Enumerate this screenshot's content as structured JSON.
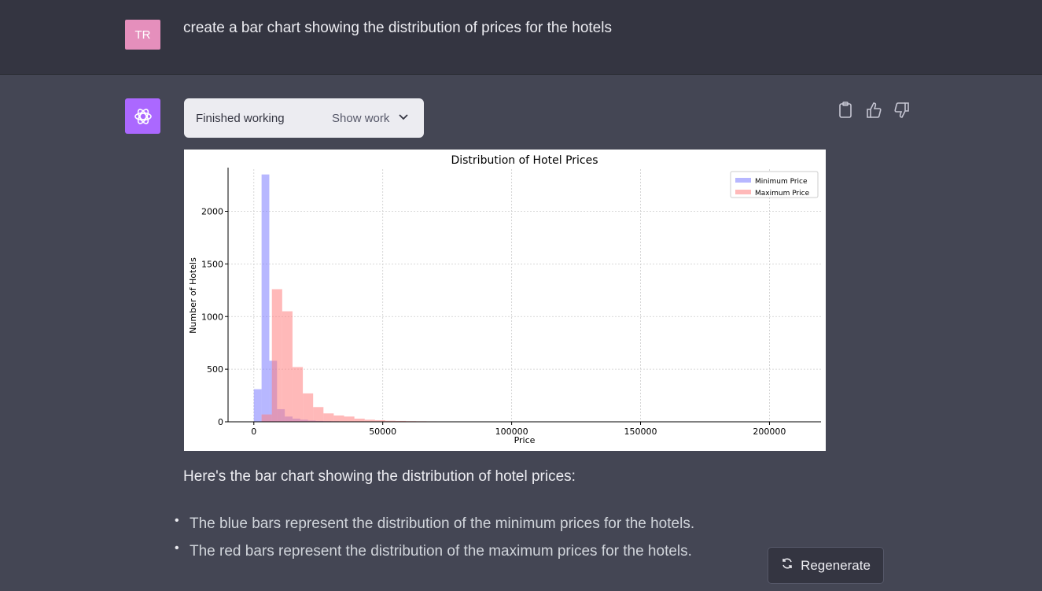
{
  "user_message": {
    "avatar_initials": "TR",
    "text": "create a bar chart showing the distribution of prices for the hotels"
  },
  "assistant": {
    "status": "Finished working",
    "show_work": "Show work",
    "intro": "Here's the bar chart showing the distribution of hotel prices:",
    "bullets": [
      "The blue bars represent the distribution of the minimum prices for the hotels.",
      "The red bars represent the distribution of the maximum prices for the hotels."
    ]
  },
  "regenerate_label": "Regenerate",
  "icons": {
    "copy": "clipboard-icon",
    "like": "thumbs-up-icon",
    "dislike": "thumbs-down-icon",
    "regenerate": "refresh-icon",
    "assistant": "openai-logo-icon",
    "chevron": "chevron-down-icon"
  },
  "colors": {
    "user_avatar": "#e58fbc",
    "assistant_avatar": "#ab68ff",
    "min_series": "#7b7bff",
    "max_series": "#ff7f7f"
  },
  "chart_data": {
    "type": "bar",
    "title": "Distribution of Hotel Prices",
    "xlabel": "Price",
    "ylabel": "Number of Hotels",
    "xlim": [
      -10000,
      220000
    ],
    "ylim": [
      0,
      2400
    ],
    "xticks": [
      0,
      50000,
      100000,
      150000,
      200000
    ],
    "yticks": [
      0,
      500,
      1000,
      1500,
      2000
    ],
    "grid": true,
    "legend_position": "top-right",
    "series": [
      {
        "name": "Minimum Price",
        "color": "#7b7bff",
        "bin_starts": [
          0,
          3000,
          6000,
          9000,
          12000,
          15000,
          18000,
          21000,
          24000,
          27000,
          30000,
          33000,
          36000,
          39000,
          42000
        ],
        "values": [
          310,
          2350,
          580,
          120,
          50,
          30,
          20,
          12,
          8,
          6,
          5,
          4,
          3,
          2,
          2
        ]
      },
      {
        "name": "Maximum Price",
        "color": "#ff7f7f",
        "bin_starts": [
          3000,
          7000,
          11000,
          15000,
          19000,
          23000,
          27000,
          31000,
          35000,
          39000,
          43000,
          47000,
          51000,
          55000,
          59000,
          63000,
          67000,
          71000
        ],
        "values": [
          70,
          1260,
          1050,
          520,
          270,
          140,
          80,
          60,
          50,
          30,
          20,
          15,
          10,
          8,
          6,
          5,
          4,
          3
        ]
      }
    ],
    "bin_width": {
      "Minimum Price": 3000,
      "Maximum Price": 4000
    }
  }
}
